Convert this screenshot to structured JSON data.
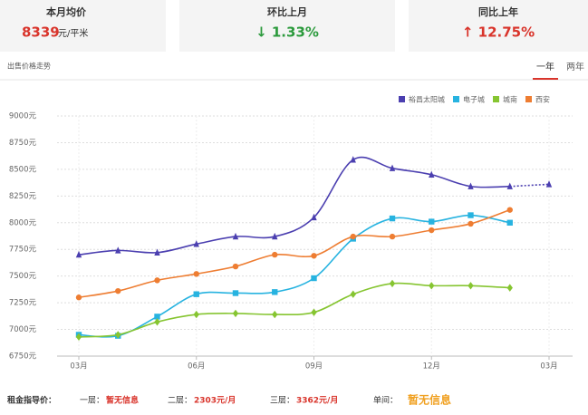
{
  "stats": [
    {
      "label": "本月均价",
      "value": "8339",
      "unit": "元/平米"
    },
    {
      "label": "环比上月",
      "value": "↓ 1.33%"
    },
    {
      "label": "同比上年",
      "value": "↑ 12.75%"
    }
  ],
  "section_title": "出售价格走势",
  "tabs": [
    "一年",
    "两年"
  ],
  "chart_data": {
    "type": "line",
    "categories": [
      "03月",
      null,
      null,
      "06月",
      null,
      null,
      "09月",
      null,
      null,
      "12月",
      null,
      null,
      "03月"
    ],
    "series": [
      {
        "name": "裕昌太阳城",
        "color": "#4b3fb0",
        "marker": "triangle",
        "dashed_from": 11,
        "values": [
          7700,
          7740,
          7720,
          7800,
          7870,
          7870,
          8050,
          8590,
          8510,
          8450,
          8340,
          8340,
          8360
        ]
      },
      {
        "name": "电子城",
        "color": "#27b3e0",
        "marker": "square",
        "values": [
          6950,
          6940,
          7120,
          7330,
          7340,
          7350,
          7480,
          7850,
          8040,
          8010,
          8070,
          8000,
          null
        ]
      },
      {
        "name": "城南",
        "color": "#86c531",
        "marker": "diamond",
        "values": [
          6930,
          6950,
          7070,
          7140,
          7150,
          7140,
          7160,
          7330,
          7430,
          7410,
          7410,
          7390,
          null
        ]
      },
      {
        "name": "西安",
        "color": "#ee7d32",
        "marker": "circle",
        "values": [
          7300,
          7360,
          7460,
          7520,
          7590,
          7700,
          7690,
          7870,
          7870,
          7930,
          7990,
          8120,
          null
        ]
      }
    ],
    "ylim": [
      6750,
      9000
    ],
    "yticks": [
      {
        "value": 9000,
        "label": "9000元"
      },
      {
        "value": 8750,
        "label": "8750元"
      },
      {
        "value": 8500,
        "label": "8500元"
      },
      {
        "value": 8250,
        "label": "8250元"
      },
      {
        "value": 8000,
        "label": "8000元"
      },
      {
        "value": 7750,
        "label": "7750元"
      },
      {
        "value": 7500,
        "label": "7500元"
      },
      {
        "value": 7250,
        "label": "7250元"
      },
      {
        "value": 7000,
        "label": "7000元"
      },
      {
        "value": 6750,
        "label": "6750元"
      }
    ],
    "grid": true
  },
  "rent": {
    "label": "租金指导价：",
    "items": [
      {
        "label": "一层：",
        "value": "暂无信息"
      },
      {
        "label": "二层：",
        "value": "2303元/月"
      },
      {
        "label": "三层：",
        "value": "3362元/月"
      },
      {
        "label": "单间：",
        "value": "暂无信息"
      }
    ]
  }
}
